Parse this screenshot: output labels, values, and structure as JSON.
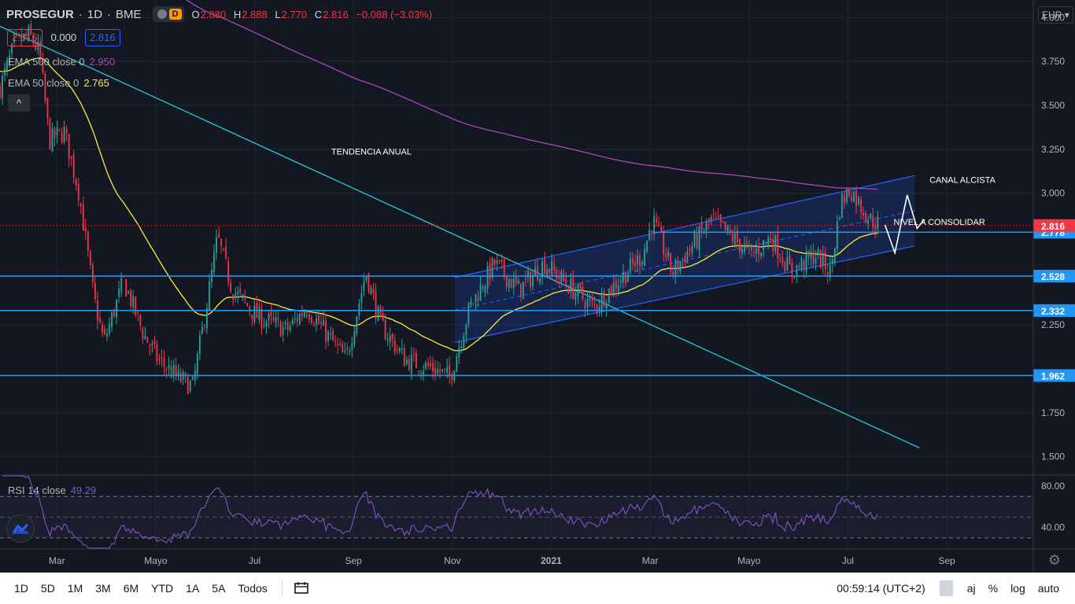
{
  "header": {
    "symbol": "PROSEGUR",
    "interval": "1D",
    "exchange": "BME",
    "toggle_label": "D",
    "ohlc": {
      "o_label": "O",
      "o": "2.880",
      "h_label": "H",
      "h": "2.888",
      "l_label": "L",
      "l": "2.770",
      "c_label": "C",
      "c": "2.816",
      "change": "−0.088 (−3.03%)"
    }
  },
  "price_boxes": {
    "bid": "2.816",
    "spread": "0.000",
    "ask": "2.816"
  },
  "indicators": {
    "ema500": {
      "label": "EMA 500 close 0",
      "value": "2.950",
      "color": "#ab47bc"
    },
    "ema50": {
      "label": "EMA 50 close 0",
      "value": "2.765",
      "color": "#ffeb3b"
    },
    "rsi": {
      "label": "RSI 14 close",
      "value": "49.29",
      "color": "#7e57c2"
    }
  },
  "currency": "EUR",
  "colors": {
    "up": "#26a69a",
    "down": "#f23645",
    "level": "#2196f3",
    "trend": "#26c6da",
    "channel": "#2962ff"
  },
  "chart_data": {
    "type": "candlestick",
    "x_ticks": [
      {
        "label": "Mar",
        "x": 0.15
      },
      {
        "label": "Mayo",
        "x": 2.15
      },
      {
        "label": "Jul",
        "x": 4.15
      },
      {
        "label": "Sep",
        "x": 6.15
      },
      {
        "label": "Nov",
        "x": 8.15
      },
      {
        "label": "2021",
        "x": 10.15
      },
      {
        "label": "Mar",
        "x": 12.15
      },
      {
        "label": "Mayo",
        "x": 14.15
      },
      {
        "label": "Jul",
        "x": 16.15
      },
      {
        "label": "Sep",
        "x": 18.15
      }
    ],
    "y_ticks": [
      4.0,
      3.75,
      3.5,
      3.25,
      3.0,
      2.25,
      1.75,
      1.5
    ],
    "y_tick_labels": [
      "4.000",
      "3.750",
      "3.500",
      "3.250",
      "3.000",
      "2.250",
      "1.750",
      "1.500"
    ],
    "y_range": [
      1.4,
      4.1
    ],
    "x_range": [
      -1.0,
      19.9
    ],
    "price_series_monthly": [
      {
        "m": -1.0,
        "p": 3.6
      },
      {
        "m": -0.7,
        "p": 3.85
      },
      {
        "m": -0.4,
        "p": 3.9
      },
      {
        "m": -0.2,
        "p": 3.8
      },
      {
        "m": 0.0,
        "p": 3.3
      },
      {
        "m": 0.3,
        "p": 3.35
      },
      {
        "m": 0.6,
        "p": 3.0
      },
      {
        "m": 0.9,
        "p": 2.4
      },
      {
        "m": 1.1,
        "p": 2.15
      },
      {
        "m": 1.5,
        "p": 2.5
      },
      {
        "m": 1.9,
        "p": 2.2
      },
      {
        "m": 2.2,
        "p": 2.05
      },
      {
        "m": 2.6,
        "p": 1.95
      },
      {
        "m": 2.9,
        "p": 1.9
      },
      {
        "m": 3.2,
        "p": 2.4
      },
      {
        "m": 3.4,
        "p": 2.75
      },
      {
        "m": 3.7,
        "p": 2.45
      },
      {
        "m": 4.2,
        "p": 2.3
      },
      {
        "m": 4.8,
        "p": 2.22
      },
      {
        "m": 5.2,
        "p": 2.35
      },
      {
        "m": 5.6,
        "p": 2.2
      },
      {
        "m": 6.0,
        "p": 2.05
      },
      {
        "m": 6.4,
        "p": 2.55
      },
      {
        "m": 6.7,
        "p": 2.25
      },
      {
        "m": 7.2,
        "p": 2.05
      },
      {
        "m": 7.8,
        "p": 2.0
      },
      {
        "m": 8.1,
        "p": 1.95
      },
      {
        "m": 8.5,
        "p": 2.35
      },
      {
        "m": 9.0,
        "p": 2.6
      },
      {
        "m": 9.5,
        "p": 2.45
      },
      {
        "m": 10.0,
        "p": 2.6
      },
      {
        "m": 10.6,
        "p": 2.45
      },
      {
        "m": 11.0,
        "p": 2.35
      },
      {
        "m": 11.5,
        "p": 2.5
      },
      {
        "m": 12.0,
        "p": 2.65
      },
      {
        "m": 12.2,
        "p": 2.85
      },
      {
        "m": 12.6,
        "p": 2.55
      },
      {
        "m": 13.0,
        "p": 2.7
      },
      {
        "m": 13.4,
        "p": 2.85
      },
      {
        "m": 13.8,
        "p": 2.75
      },
      {
        "m": 14.2,
        "p": 2.65
      },
      {
        "m": 14.6,
        "p": 2.75
      },
      {
        "m": 15.0,
        "p": 2.55
      },
      {
        "m": 15.5,
        "p": 2.65
      },
      {
        "m": 15.8,
        "p": 2.55
      },
      {
        "m": 16.0,
        "p": 2.95
      },
      {
        "m": 16.2,
        "p": 3.02
      },
      {
        "m": 16.6,
        "p": 2.85
      },
      {
        "m": 16.8,
        "p": 2.82
      }
    ],
    "horizontal_levels": [
      {
        "price": 2.528,
        "label": "2.528"
      },
      {
        "price": 2.332,
        "label": "2.332"
      },
      {
        "price": 1.962,
        "label": "1.962"
      },
      {
        "price": 2.778,
        "label": "2.778"
      }
    ],
    "last_price": {
      "price": 2.816,
      "label": "2.816"
    },
    "trendline": {
      "from": {
        "m": -1.0,
        "p": 3.95
      },
      "to": {
        "m": 17.6,
        "p": 1.55
      }
    },
    "channel": {
      "lower": {
        "from": {
          "m": 8.2,
          "p": 2.15
        },
        "to": {
          "m": 17.5,
          "p": 2.7
        }
      },
      "upper": {
        "from": {
          "m": 8.2,
          "p": 2.52
        },
        "to": {
          "m": 17.5,
          "p": 3.1
        }
      }
    },
    "annotations": [
      {
        "text": "TENDENCIA ANUAL",
        "m": 5.7,
        "p": 3.22
      },
      {
        "text": "CANAL ALCISTA",
        "m": 17.8,
        "p": 3.06
      },
      {
        "text": "NIVEL A CONSOLIDAR",
        "m": 18.0,
        "p": 2.82
      }
    ],
    "rsi": {
      "y_ticks": [
        80.0,
        40.0
      ],
      "y_tick_labels": [
        "80.00",
        "40.00"
      ],
      "levels": [
        70,
        30
      ],
      "range": [
        20,
        90
      ]
    }
  },
  "toolbar": {
    "timeframes": [
      "1D",
      "5D",
      "1M",
      "3M",
      "6M",
      "YTD",
      "1A",
      "5A",
      "Todos"
    ],
    "clock": "00:59:14 (UTC+2)",
    "opts": [
      "aj",
      "%",
      "log",
      "auto"
    ]
  }
}
